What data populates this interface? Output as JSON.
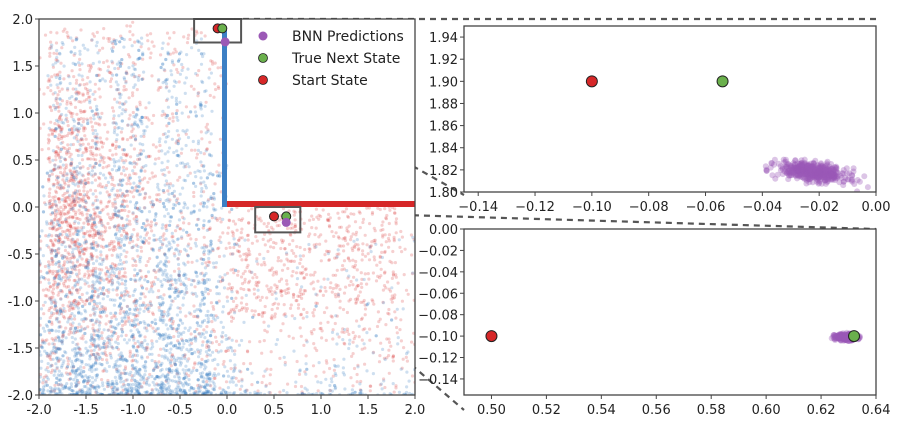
{
  "colors": {
    "red": "#d62728",
    "blue": "#3c7fc4",
    "purple": "#9b59b6",
    "green": "#6ab04c",
    "frame": "#444444",
    "dash": "#555555"
  },
  "legend": {
    "items": [
      {
        "label": "BNN Predictions",
        "color": "#9b59b6"
      },
      {
        "label": "True Next State",
        "color": "#6ab04c"
      },
      {
        "label": "Start State",
        "color": "#d62728"
      }
    ]
  },
  "chart_data": [
    {
      "id": "main",
      "type": "scatter",
      "title": "",
      "xlim": [
        -2.0,
        2.0
      ],
      "ylim": [
        -2.0,
        2.0
      ],
      "xticks": [
        "-2.0",
        "-1.5",
        "-1.0",
        "-0.5",
        "0.0",
        "0.5",
        "1.0",
        "1.5",
        "2.0"
      ],
      "yticks": [
        "-2.0",
        "-1.5",
        "-1.0",
        "-0.5",
        "0.0",
        "0.5",
        "1.0",
        "1.5",
        "2.0"
      ],
      "series": [
        {
          "name": "Start State",
          "points": [
            [
              -0.1,
              1.9
            ],
            [
              0.5,
              -0.1
            ]
          ]
        },
        {
          "name": "True Next State",
          "points": [
            [
              -0.05,
              1.9
            ],
            [
              0.63,
              -0.1
            ]
          ]
        },
        {
          "name": "BNN Predictions",
          "points": [
            [
              -0.02,
              1.82
            ],
            [
              0.63,
              -0.1
            ]
          ]
        }
      ],
      "action_bars": [
        {
          "orientation": "vertical",
          "x": 0.0,
          "y_from": 0.0,
          "y_to": 1.9,
          "color": "#3c7fc4"
        },
        {
          "orientation": "horizontal",
          "y": 0.0,
          "x_from": 0.0,
          "x_to": 2.0,
          "color": "#d62728"
        }
      ],
      "zoom_boxes": [
        {
          "x": [
            -0.35,
            0.15
          ],
          "y": [
            1.75,
            2.0
          ]
        },
        {
          "x": [
            0.3,
            0.78
          ],
          "y": [
            -0.27,
            0.0
          ]
        }
      ]
    },
    {
      "id": "zoom_top",
      "type": "scatter",
      "xlim": [
        -0.145,
        0.0
      ],
      "ylim": [
        1.8,
        1.95
      ],
      "xticks": [
        "−0.14",
        "−0.12",
        "−0.10",
        "−0.08",
        "−0.06",
        "−0.04",
        "−0.02",
        "0.00"
      ],
      "yticks": [
        "1.80",
        "1.82",
        "1.84",
        "1.86",
        "1.88",
        "1.90",
        "1.92",
        "1.94"
      ],
      "series": [
        {
          "name": "Start State",
          "points": [
            [
              -0.1,
              1.9
            ]
          ]
        },
        {
          "name": "True Next State",
          "points": [
            [
              -0.054,
              1.9
            ]
          ]
        },
        {
          "name": "BNN Predictions",
          "cluster_center": [
            -0.022,
            1.818
          ],
          "spread": [
            0.006,
            0.004
          ]
        }
      ]
    },
    {
      "id": "zoom_bottom",
      "type": "scatter",
      "xlim": [
        0.49,
        0.64
      ],
      "ylim": [
        -0.155,
        0.0
      ],
      "xticks": [
        "0.50",
        "0.52",
        "0.54",
        "0.56",
        "0.58",
        "0.60",
        "0.62",
        "0.64"
      ],
      "yticks": [
        "0.00",
        "−0.02",
        "−0.04",
        "−0.06",
        "−0.08",
        "−0.10",
        "−0.12",
        "−0.14"
      ],
      "series": [
        {
          "name": "Start State",
          "points": [
            [
              0.5,
              -0.1
            ]
          ]
        },
        {
          "name": "True Next State",
          "points": [
            [
              0.632,
              -0.1
            ]
          ]
        },
        {
          "name": "BNN Predictions",
          "cluster_center": [
            0.629,
            -0.101
          ],
          "spread": [
            0.002,
            0.0015
          ]
        }
      ]
    }
  ]
}
